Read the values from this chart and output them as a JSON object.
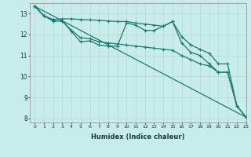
{
  "xlabel": "Humidex (Indice chaleur)",
  "background_color": "#c8ecea",
  "grid_color": "#b8d8d4",
  "line_color": "#1a7a6e",
  "xlim": [
    -0.5,
    23
  ],
  "ylim": [
    7.8,
    13.5
  ],
  "yticks": [
    8,
    9,
    10,
    11,
    12,
    13
  ],
  "xticks": [
    0,
    1,
    2,
    3,
    4,
    5,
    6,
    7,
    8,
    9,
    10,
    11,
    12,
    13,
    14,
    15,
    16,
    17,
    18,
    19,
    20,
    21,
    22,
    23
  ],
  "series1": [
    [
      0,
      13.35
    ],
    [
      1,
      12.9
    ],
    [
      2,
      12.72
    ],
    [
      3,
      12.75
    ],
    [
      4,
      12.75
    ],
    [
      5,
      12.72
    ],
    [
      6,
      12.7
    ],
    [
      7,
      12.68
    ],
    [
      8,
      12.65
    ],
    [
      9,
      12.62
    ],
    [
      10,
      12.62
    ],
    [
      11,
      12.55
    ],
    [
      12,
      12.5
    ],
    [
      13,
      12.45
    ],
    [
      14,
      12.4
    ],
    [
      15,
      12.62
    ],
    [
      16,
      11.9
    ],
    [
      17,
      11.5
    ],
    [
      18,
      11.3
    ],
    [
      19,
      11.1
    ],
    [
      20,
      10.6
    ],
    [
      21,
      10.6
    ],
    [
      22,
      8.6
    ],
    [
      23,
      8.05
    ]
  ],
  "series2": [
    [
      0,
      13.35
    ],
    [
      1,
      12.9
    ],
    [
      2,
      12.65
    ],
    [
      3,
      12.65
    ],
    [
      4,
      12.15
    ],
    [
      5,
      11.65
    ],
    [
      6,
      11.7
    ],
    [
      7,
      11.5
    ],
    [
      8,
      11.45
    ],
    [
      9,
      11.45
    ],
    [
      10,
      12.55
    ],
    [
      11,
      12.45
    ],
    [
      12,
      12.2
    ],
    [
      13,
      12.2
    ],
    [
      14,
      12.4
    ],
    [
      15,
      12.62
    ],
    [
      16,
      11.6
    ],
    [
      17,
      11.15
    ],
    [
      18,
      11.0
    ],
    [
      19,
      10.6
    ],
    [
      20,
      10.2
    ],
    [
      21,
      10.2
    ],
    [
      22,
      8.6
    ],
    [
      23,
      8.05
    ]
  ],
  "series3": [
    [
      0,
      13.35
    ],
    [
      1,
      12.9
    ],
    [
      2,
      12.65
    ],
    [
      3,
      12.65
    ],
    [
      4,
      12.2
    ],
    [
      5,
      11.85
    ],
    [
      6,
      11.8
    ],
    [
      7,
      11.65
    ],
    [
      8,
      11.6
    ],
    [
      9,
      11.55
    ],
    [
      10,
      11.5
    ],
    [
      11,
      11.45
    ],
    [
      12,
      11.4
    ],
    [
      13,
      11.35
    ],
    [
      14,
      11.3
    ],
    [
      15,
      11.25
    ],
    [
      16,
      11.0
    ],
    [
      17,
      10.8
    ],
    [
      18,
      10.6
    ],
    [
      19,
      10.5
    ],
    [
      20,
      10.2
    ],
    [
      21,
      10.2
    ],
    [
      22,
      8.6
    ],
    [
      23,
      8.05
    ]
  ],
  "series4": [
    [
      0,
      13.35
    ],
    [
      23,
      8.05
    ]
  ]
}
